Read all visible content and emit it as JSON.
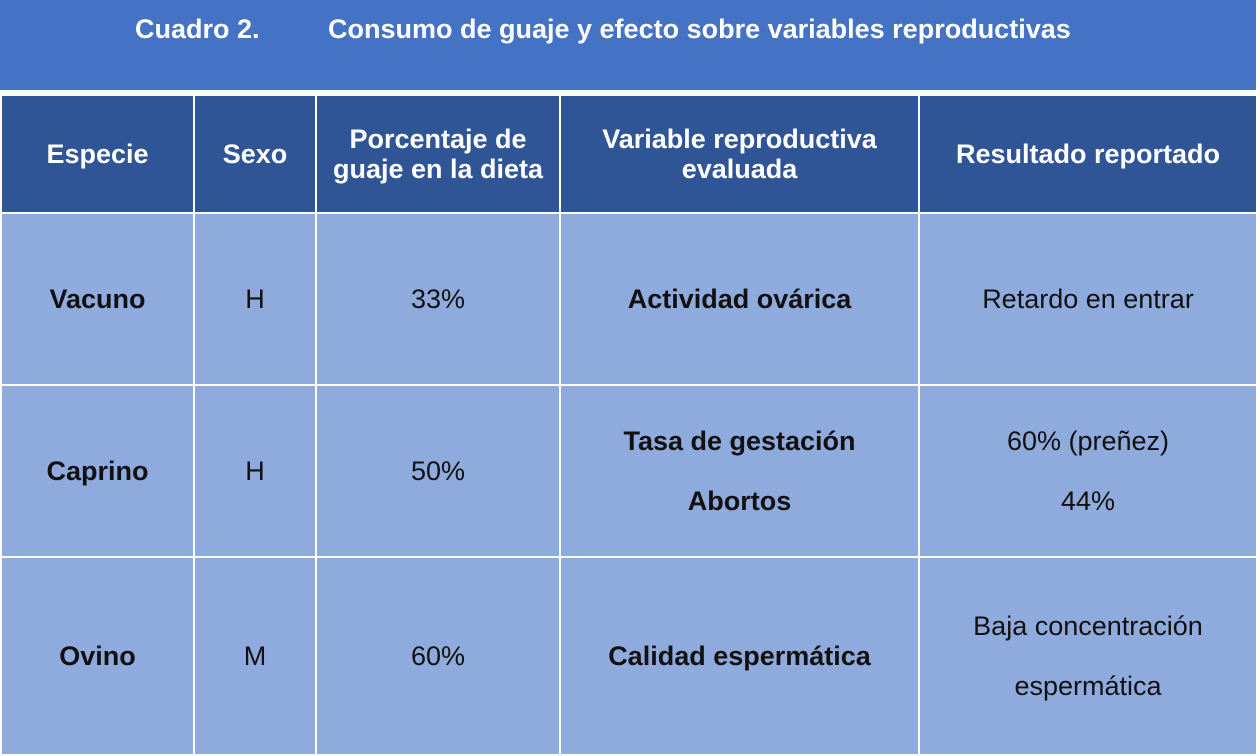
{
  "title": {
    "number": "Cuadro 2.",
    "text": "Consumo de guaje y efecto sobre variables reproductivas"
  },
  "columns": [
    "Especie",
    "Sexo",
    "Porcentaje de guaje en la dieta",
    "Variable reproductiva evaluada",
    "Resultado reportado"
  ],
  "rows": [
    {
      "especie": "Vacuno",
      "sexo": "H",
      "porcentaje": "33%",
      "variable": [
        "Actividad ovárica"
      ],
      "resultado": [
        "Retardo en entrar"
      ]
    },
    {
      "especie": "Caprino",
      "sexo": "H",
      "porcentaje": "50%",
      "variable": [
        "Tasa de gestación",
        "Abortos"
      ],
      "resultado": [
        "60% (preñez)",
        "44%"
      ]
    },
    {
      "especie": "Ovino",
      "sexo": "M",
      "porcentaje": "60%",
      "variable": [
        "Calidad espermática"
      ],
      "resultado": [
        "Baja concentración espermática"
      ]
    }
  ],
  "colors": {
    "title_bg": "#4472c4",
    "header_bg": "#2f5597",
    "body_bg": "#8faadc"
  }
}
